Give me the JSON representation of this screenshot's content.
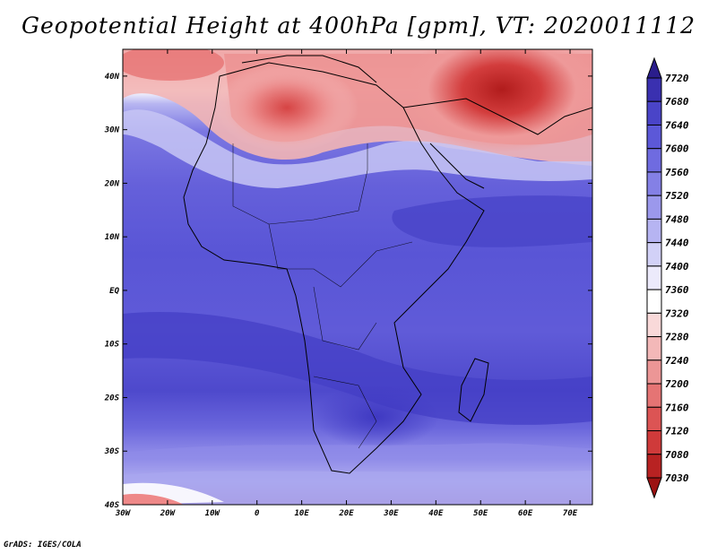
{
  "title": "Geopotential Height at 400hPa [gpm], VT: 2020011112",
  "credit": "GrADS: IGES/COLA",
  "map": {
    "lat_labels": [
      "40N",
      "30N",
      "20N",
      "10N",
      "EQ",
      "10S",
      "20S",
      "30S",
      "40S"
    ],
    "lat_values": [
      40,
      30,
      20,
      10,
      0,
      -10,
      -20,
      -30,
      -40
    ],
    "lon_labels": [
      "30W",
      "20W",
      "10W",
      "0",
      "10E",
      "20E",
      "30E",
      "40E",
      "50E",
      "60E",
      "70E"
    ],
    "lon_values": [
      -30,
      -20,
      -10,
      0,
      10,
      20,
      30,
      40,
      50,
      60,
      70
    ],
    "lon_range": [
      -30,
      75
    ],
    "lat_range": [
      -40,
      45
    ]
  },
  "colorbar": {
    "levels": [
      "7720",
      "7680",
      "7640",
      "7600",
      "7560",
      "7520",
      "7480",
      "7440",
      "7400",
      "7360",
      "7320",
      "7280",
      "7240",
      "7200",
      "7160",
      "7120",
      "7080",
      "7030"
    ],
    "colors": [
      "#2a1d8c",
      "#3a30b0",
      "#4a44c8",
      "#5c58d8",
      "#6f6be0",
      "#8480e6",
      "#9b98ec",
      "#b6b4f2",
      "#d2d1f7",
      "#eceafb",
      "#ffffff",
      "#f9d9d9",
      "#f3b8b8",
      "#ec9696",
      "#e57474",
      "#dc5454",
      "#cf3a3a",
      "#b82222",
      "#9c1212"
    ]
  }
}
